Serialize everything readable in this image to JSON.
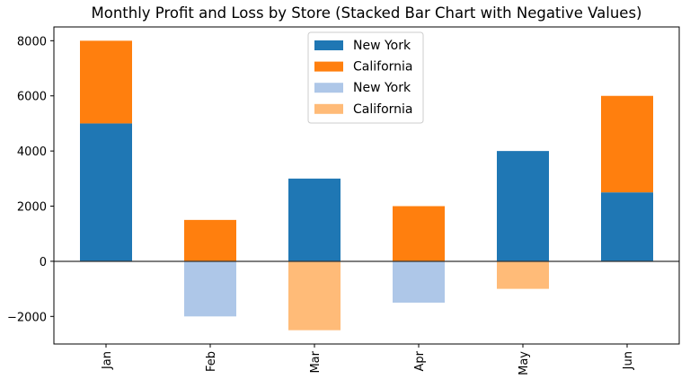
{
  "chart_data": {
    "type": "bar",
    "stacked": true,
    "title": "Monthly Profit and Loss by Store (Stacked Bar Chart with Negative Values)",
    "xlabel": "",
    "ylabel": "",
    "categories": [
      "Jan",
      "Feb",
      "Mar",
      "Apr",
      "May",
      "Jun"
    ],
    "ylim": [
      -3000,
      8500
    ],
    "yticks": [
      -2000,
      0,
      2000,
      4000,
      6000,
      8000
    ],
    "ytick_labels": [
      "−2000",
      "0",
      "2000",
      "4000",
      "6000",
      "8000"
    ],
    "grid": false,
    "legend_placement": "upper center",
    "series": [
      {
        "name": "New York",
        "color": "#1f77b4",
        "values": [
          5000,
          0,
          3000,
          0,
          4000,
          2500
        ]
      },
      {
        "name": "California",
        "color": "#ff7f0e",
        "values": [
          3000,
          1500,
          0,
          2000,
          0,
          3500
        ]
      },
      {
        "name": "New York",
        "color": "#aec7e8",
        "values": [
          0,
          -2000,
          0,
          -1500,
          0,
          0
        ]
      },
      {
        "name": "California",
        "color": "#ffbb78",
        "values": [
          0,
          0,
          -2500,
          0,
          -1000,
          0
        ]
      }
    ]
  }
}
